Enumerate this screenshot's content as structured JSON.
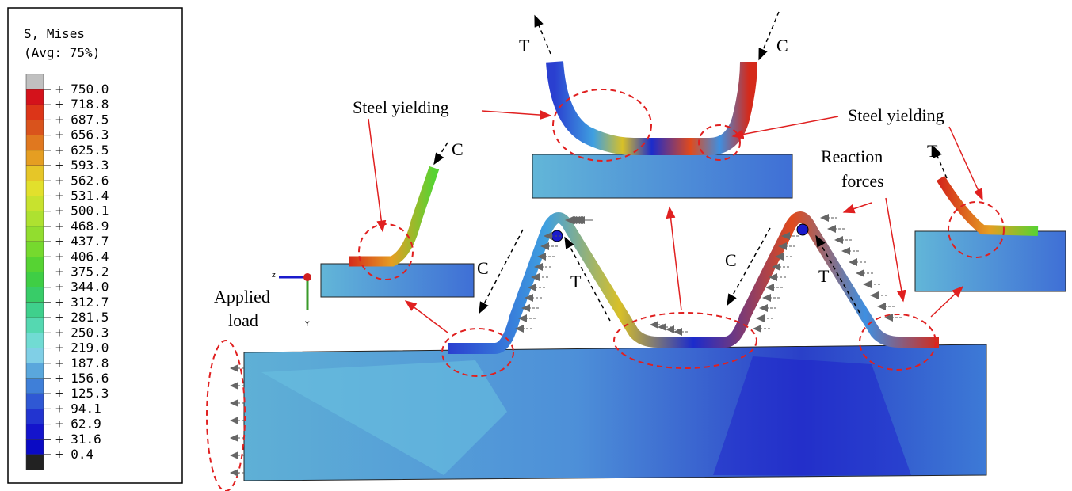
{
  "legend": {
    "title": "S, Mises",
    "subtitle": "(Avg: 75%)",
    "labels": [
      "+ 750.0",
      "+ 718.8",
      "+ 687.5",
      "+ 656.3",
      "+ 625.5",
      "+ 593.3",
      "+ 562.6",
      "+ 531.4",
      "+ 500.1",
      "+ 468.9",
      "+ 437.7",
      "+ 406.4",
      "+ 375.2",
      "+ 344.0",
      "+ 312.7",
      "+ 281.5",
      "+ 250.3",
      "+ 219.0",
      "+ 187.8",
      "+ 156.6",
      "+ 125.3",
      "+ 94.1",
      "+ 62.9",
      "+ 31.6",
      "+ 0.4"
    ],
    "colors": [
      "#c0c0c0",
      "#d4121b",
      "#dc3518",
      "#d9531c",
      "#e0781f",
      "#e59e22",
      "#e6c628",
      "#e2e02c",
      "#c8e22e",
      "#aee130",
      "#92dd2f",
      "#76d92e",
      "#56d333",
      "#3fce45",
      "#38cc68",
      "#3fd08c",
      "#55d8b1",
      "#71dbd3",
      "#80cfe6",
      "#5aa7dc",
      "#3f7fd8",
      "#2f58d4",
      "#2234d0",
      "#1414cc",
      "#0a0ac4",
      "#222222"
    ]
  },
  "annotations": [
    "Steel yielding",
    "Steel yielding",
    "Reaction",
    "forces",
    "Applied",
    "load",
    "T",
    "C",
    "C",
    "C",
    "T",
    "C",
    "T",
    "T"
  ],
  "axes": [
    "z",
    "Y"
  ]
}
